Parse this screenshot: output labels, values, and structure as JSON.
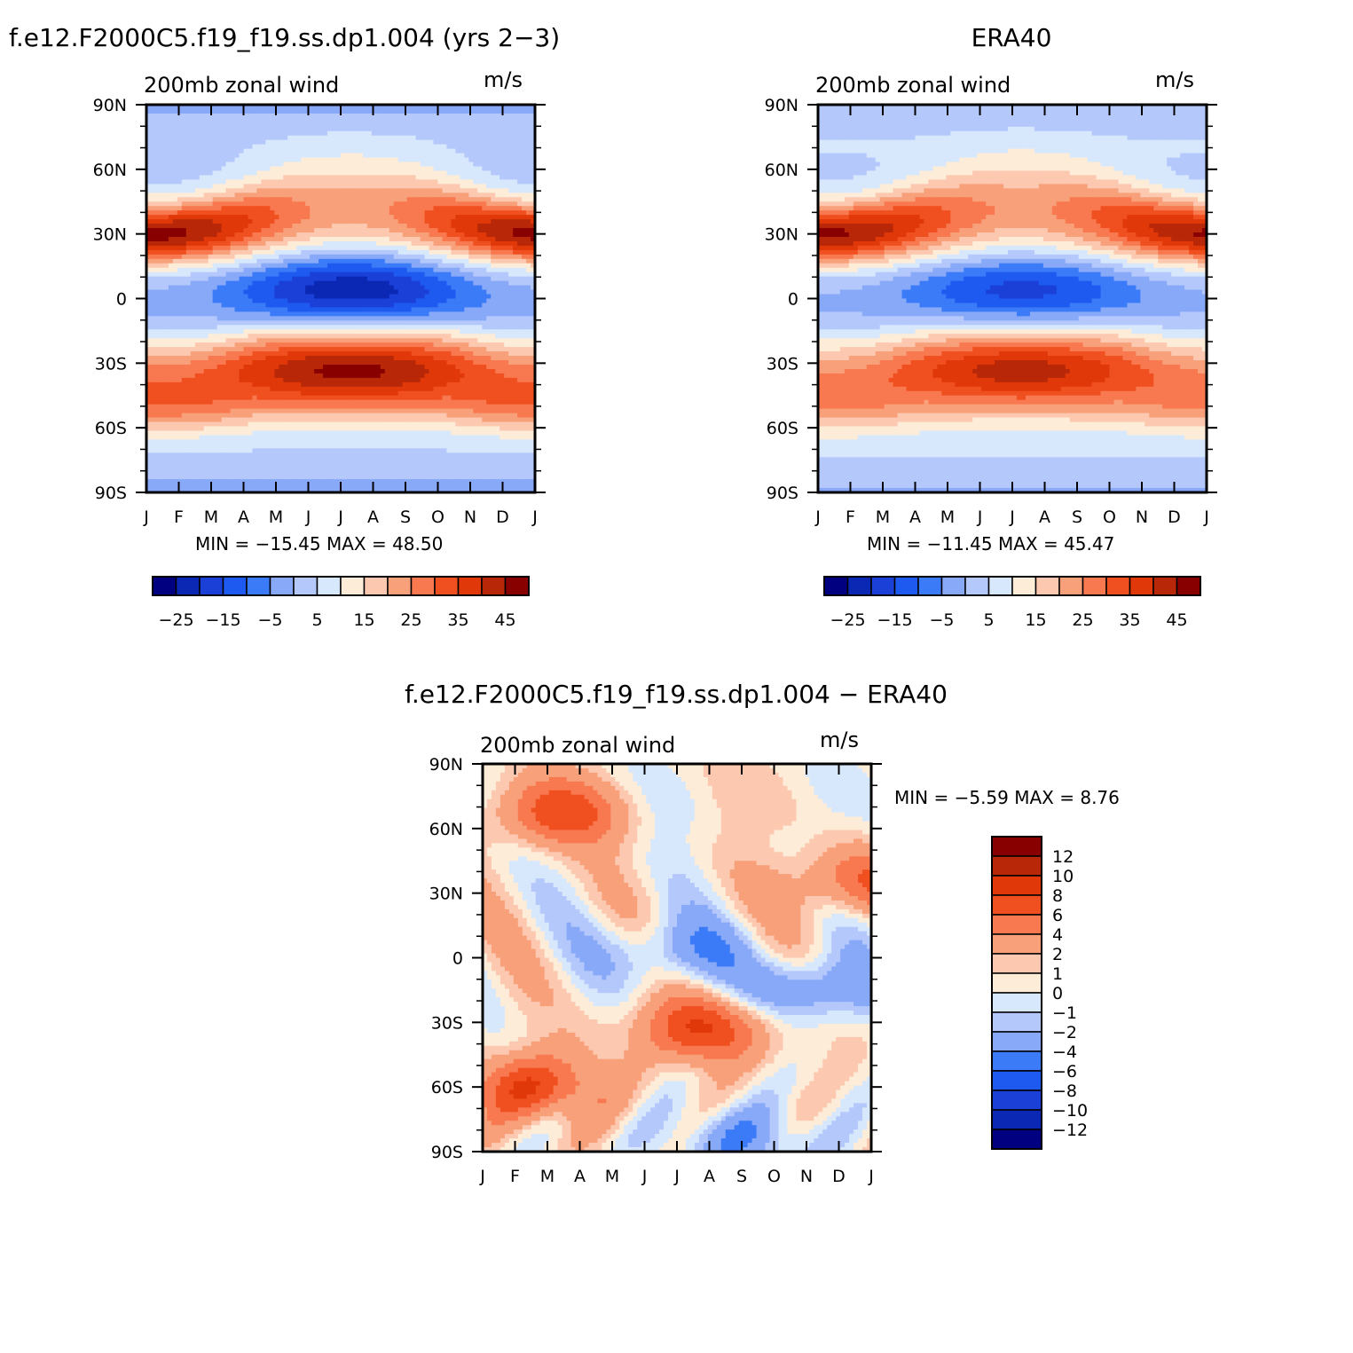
{
  "chart_data": [
    {
      "type": "heatmap",
      "title": "f.e12.F2000C5.f19_f19.ss.dp1.004 (yrs 2−3)",
      "subtitle": "200mb zonal wind",
      "units": "m/s",
      "stats": "MIN =  −15.45  MAX =   48.50",
      "x": [
        "J",
        "F",
        "M",
        "A",
        "M",
        "J",
        "J",
        "A",
        "S",
        "O",
        "N",
        "D",
        "J"
      ],
      "y": [
        "90N",
        "60N",
        "30N",
        "0",
        "30S",
        "60S",
        "90S"
      ],
      "y_values": [
        90,
        60,
        30,
        0,
        -30,
        -60,
        -90
      ],
      "colorbar_labels": [
        "−25",
        "−15",
        "−5",
        "5",
        "15",
        "25",
        "35",
        "45"
      ],
      "levels": [
        -30,
        -25,
        -20,
        -15,
        -10,
        -5,
        0,
        5,
        10,
        15,
        20,
        25,
        30,
        35,
        40,
        45,
        50
      ],
      "features": [
        {
          "month": 1.3,
          "lat": 30,
          "value": 46
        },
        {
          "month": 12.2,
          "lat": 30,
          "value": 44
        },
        {
          "month": 7.5,
          "lat": 5,
          "value": -15
        },
        {
          "month": 7.3,
          "lat": -30,
          "value": 48
        },
        {
          "month": 2.5,
          "lat": -48,
          "value": 32
        },
        {
          "month": 11.0,
          "lat": -38,
          "value": 33
        }
      ]
    },
    {
      "type": "heatmap",
      "title": "ERA40",
      "subtitle": "200mb zonal wind",
      "units": "m/s",
      "stats": "MIN =  −11.45  MAX =   45.47",
      "x": [
        "J",
        "F",
        "M",
        "A",
        "M",
        "J",
        "J",
        "A",
        "S",
        "O",
        "N",
        "D",
        "J"
      ],
      "y": [
        "90N",
        "60N",
        "30N",
        "0",
        "30S",
        "60S",
        "90S"
      ],
      "y_values": [
        90,
        60,
        30,
        0,
        -30,
        -60,
        -90
      ],
      "colorbar_labels": [
        "−25",
        "−15",
        "−5",
        "5",
        "15",
        "25",
        "35",
        "45"
      ],
      "levels": [
        -30,
        -25,
        -20,
        -15,
        -10,
        -5,
        0,
        5,
        10,
        15,
        20,
        25,
        30,
        35,
        40,
        45,
        50
      ],
      "features": [
        {
          "month": 1.3,
          "lat": 30,
          "value": 45
        },
        {
          "month": 12.3,
          "lat": 30,
          "value": 40
        },
        {
          "month": 7.8,
          "lat": 5,
          "value": -11
        },
        {
          "month": 7.5,
          "lat": -30,
          "value": 43
        },
        {
          "month": 2.0,
          "lat": -45,
          "value": 30
        }
      ]
    },
    {
      "type": "heatmap",
      "title": "f.e12.F2000C5.f19_f19.ss.dp1.004 − ERA40",
      "subtitle": "200mb zonal wind",
      "units": "m/s",
      "stats": "MIN =   −5.59  MAX =    8.76",
      "x": [
        "J",
        "F",
        "M",
        "A",
        "M",
        "J",
        "J",
        "A",
        "S",
        "O",
        "N",
        "D",
        "J"
      ],
      "y": [
        "90N",
        "60N",
        "30N",
        "0",
        "30S",
        "60S",
        "90S"
      ],
      "y_values": [
        90,
        60,
        30,
        0,
        -30,
        -60,
        -90
      ],
      "colorbar_labels": [
        "12",
        "10",
        "8",
        "6",
        "4",
        "2",
        "1",
        "0",
        "−1",
        "−2",
        "−4",
        "−6",
        "−8",
        "−10",
        "−12"
      ],
      "levels": [
        -14,
        -12,
        -10,
        -8,
        -6,
        -4,
        -2,
        -1,
        0,
        1,
        2,
        4,
        6,
        8,
        10,
        12,
        14
      ],
      "features": [
        {
          "month": 3.2,
          "lat": 67,
          "value": 6
        },
        {
          "month": 12.5,
          "lat": 35,
          "value": 5
        },
        {
          "month": 7.0,
          "lat": 3,
          "value": -4
        },
        {
          "month": 11.2,
          "lat": -15,
          "value": -5
        },
        {
          "month": 7.8,
          "lat": -33,
          "value": 7
        },
        {
          "month": 2.5,
          "lat": -60,
          "value": 7
        },
        {
          "month": 9.0,
          "lat": -85,
          "value": -4
        }
      ]
    }
  ],
  "palette": [
    "#000080",
    "#0a28b4",
    "#1b40d8",
    "#1e5af0",
    "#3b7bf8",
    "#88a8f8",
    "#b4c8fc",
    "#d8e8fc",
    "#fdecd8",
    "#fcc8b0",
    "#f8a07a",
    "#f87850",
    "#f05020",
    "#e03808",
    "#b82808",
    "#880000"
  ]
}
